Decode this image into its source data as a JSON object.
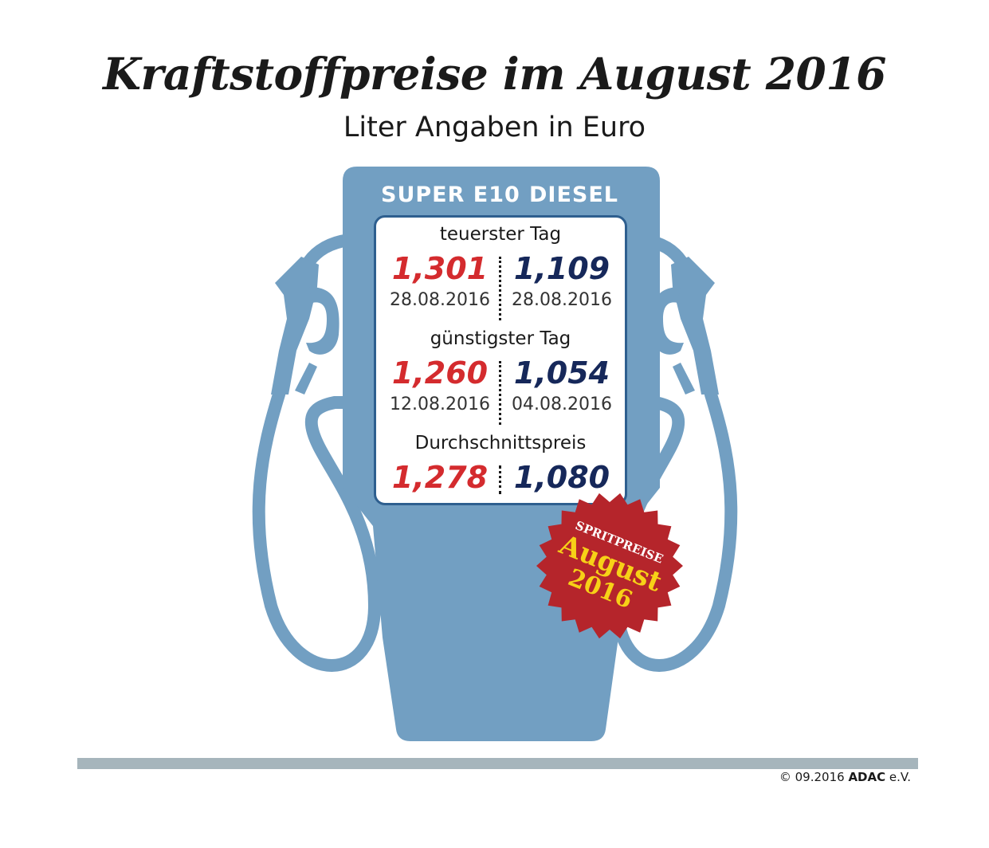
{
  "title": "Kraftstoffpreise im August 2016",
  "subtitle": "Liter Angaben in Euro",
  "columns": {
    "left": "SUPER E10",
    "right": "DIESEL"
  },
  "sections": [
    {
      "label": "teuerster Tag",
      "super_price": "1,301",
      "super_date": "28.08.2016",
      "diesel_price": "1,109",
      "diesel_date": "28.08.2016"
    },
    {
      "label": "günstigster Tag",
      "super_price": "1,260",
      "super_date": "12.08.2016",
      "diesel_price": "1,054",
      "diesel_date": "04.08.2016"
    },
    {
      "label": "Durchschnittspreis",
      "super_price": "1,278",
      "diesel_price": "1,080"
    }
  ],
  "badge": {
    "line1": "SPRITPREISE",
    "line2": "August",
    "line3": "2016"
  },
  "footer": {
    "copyright": "© 09.2016",
    "brand": "ADAC",
    "suffix": "e.V."
  },
  "colors": {
    "pump": "#729fc2",
    "super": "#d42b2e",
    "diesel": "#16285a",
    "badge": "#b5252b",
    "badge_text": "#f7d117",
    "footer_bar": "#a6b5bc"
  }
}
